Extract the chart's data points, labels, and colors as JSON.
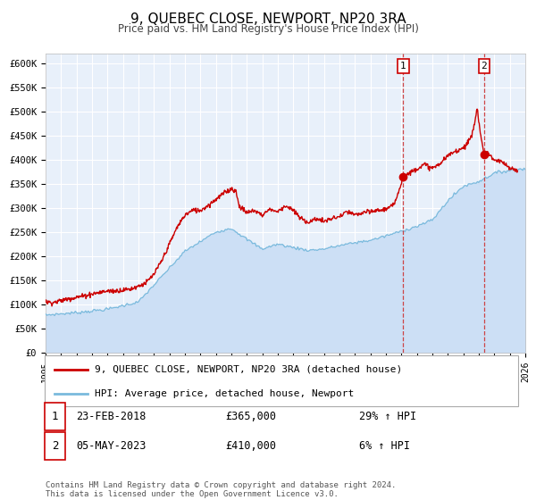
{
  "title": "9, QUEBEC CLOSE, NEWPORT, NP20 3RA",
  "subtitle": "Price paid vs. HM Land Registry's House Price Index (HPI)",
  "ylim": [
    0,
    620000
  ],
  "xlim_start": 1995,
  "xlim_end": 2026,
  "hpi_fill_color": "#ccdff5",
  "hpi_line_color": "#7abadd",
  "price_color": "#cc0000",
  "background_color": "#e8f0fa",
  "grid_color": "#ffffff",
  "marker1_date": 2018.12,
  "marker1_price": 365000,
  "marker1_label": "23-FEB-2018",
  "marker1_price_label": "£365,000",
  "marker1_hpi_label": "29% ↑ HPI",
  "marker2_date": 2023.34,
  "marker2_price": 410000,
  "marker2_label": "05-MAY-2023",
  "marker2_price_label": "£410,000",
  "marker2_hpi_label": "6% ↑ HPI",
  "legend_line1": "9, QUEBEC CLOSE, NEWPORT, NP20 3RA (detached house)",
  "legend_line2": "HPI: Average price, detached house, Newport",
  "footnote1": "Contains HM Land Registry data © Crown copyright and database right 2024.",
  "footnote2": "This data is licensed under the Open Government Licence v3.0.",
  "yticks": [
    0,
    50000,
    100000,
    150000,
    200000,
    250000,
    300000,
    350000,
    400000,
    450000,
    500000,
    550000,
    600000
  ],
  "ytick_labels": [
    "£0",
    "£50K",
    "£100K",
    "£150K",
    "£200K",
    "£250K",
    "£300K",
    "£350K",
    "£400K",
    "£450K",
    "£500K",
    "£550K",
    "£600K"
  ],
  "hpi_base_x": [
    1995,
    1997,
    1999,
    2001,
    2003,
    2004,
    2006,
    2007,
    2008,
    2009,
    2010,
    2011,
    2012,
    2013,
    2014,
    2015,
    2016,
    2017,
    2018,
    2019,
    2020,
    2021,
    2022,
    2023,
    2024,
    2025,
    2026
  ],
  "hpi_base_y": [
    78000,
    83000,
    90000,
    105000,
    175000,
    210000,
    250000,
    258000,
    235000,
    215000,
    225000,
    218000,
    212000,
    215000,
    222000,
    228000,
    233000,
    242000,
    252000,
    262000,
    275000,
    315000,
    345000,
    355000,
    372000,
    378000,
    382000
  ],
  "price_base_x": [
    1995.0,
    1995.5,
    1996.0,
    1996.5,
    1997.0,
    1997.5,
    1998.0,
    1998.5,
    1999.0,
    1999.5,
    2000.0,
    2000.5,
    2001.0,
    2001.5,
    2002.0,
    2002.5,
    2003.0,
    2003.5,
    2004.0,
    2004.5,
    2005.0,
    2005.5,
    2006.0,
    2006.5,
    2007.0,
    2007.3,
    2007.5,
    2008.0,
    2008.5,
    2009.0,
    2009.5,
    2010.0,
    2010.5,
    2011.0,
    2011.5,
    2012.0,
    2012.5,
    2013.0,
    2013.5,
    2014.0,
    2014.5,
    2015.0,
    2015.5,
    2016.0,
    2016.5,
    2017.0,
    2017.5,
    2018.12,
    2018.5,
    2019.0,
    2019.5,
    2020.0,
    2020.5,
    2021.0,
    2021.5,
    2022.0,
    2022.5,
    2022.75,
    2022.9,
    2023.0,
    2023.34,
    2023.6,
    2024.0,
    2024.5,
    2025.0,
    2025.5
  ],
  "price_base_y": [
    105000,
    104000,
    108000,
    112000,
    115000,
    118000,
    122000,
    125000,
    128000,
    128000,
    130000,
    132000,
    138000,
    145000,
    162000,
    190000,
    225000,
    260000,
    285000,
    295000,
    295000,
    305000,
    318000,
    330000,
    340000,
    335000,
    305000,
    290000,
    295000,
    285000,
    298000,
    292000,
    305000,
    295000,
    278000,
    270000,
    278000,
    272000,
    278000,
    282000,
    292000,
    285000,
    290000,
    292000,
    295000,
    298000,
    305000,
    365000,
    372000,
    382000,
    390000,
    382000,
    392000,
    408000,
    418000,
    425000,
    445000,
    480000,
    510000,
    475000,
    410000,
    415000,
    398000,
    395000,
    382000,
    378000
  ]
}
